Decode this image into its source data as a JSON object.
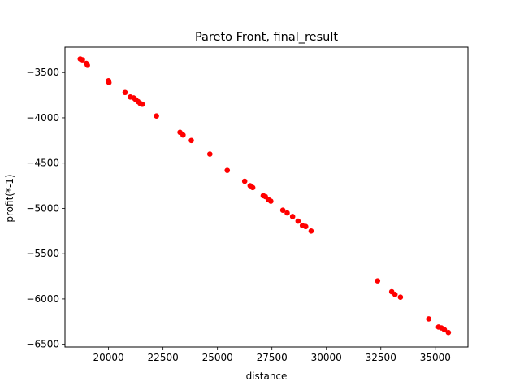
{
  "chart_data": {
    "type": "scatter",
    "title": "Pareto Front, final_result",
    "xlabel": "distance",
    "ylabel": "profit(*-1)",
    "xlim": [
      18000,
      36500
    ],
    "ylim": [
      -6530,
      -3220
    ],
    "x_ticks": [
      20000,
      22500,
      25000,
      27500,
      30000,
      32500,
      35000
    ],
    "y_ticks": [
      -3500,
      -4000,
      -4500,
      -5000,
      -5500,
      -6000,
      -6500
    ],
    "grid": false,
    "legend": "none",
    "marker_color": "#ff0000",
    "points": [
      {
        "x": 18700,
        "y": -3350
      },
      {
        "x": 18800,
        "y": -3360
      },
      {
        "x": 18980,
        "y": -3400
      },
      {
        "x": 19030,
        "y": -3420
      },
      {
        "x": 20000,
        "y": -3590
      },
      {
        "x": 20020,
        "y": -3610
      },
      {
        "x": 20760,
        "y": -3720
      },
      {
        "x": 21000,
        "y": -3770
      },
      {
        "x": 21150,
        "y": -3780
      },
      {
        "x": 21250,
        "y": -3800
      },
      {
        "x": 21350,
        "y": -3820
      },
      {
        "x": 21450,
        "y": -3840
      },
      {
        "x": 21550,
        "y": -3850
      },
      {
        "x": 22200,
        "y": -3980
      },
      {
        "x": 23280,
        "y": -4160
      },
      {
        "x": 23420,
        "y": -4190
      },
      {
        "x": 23800,
        "y": -4250
      },
      {
        "x": 24650,
        "y": -4400
      },
      {
        "x": 25450,
        "y": -4580
      },
      {
        "x": 26250,
        "y": -4700
      },
      {
        "x": 26500,
        "y": -4750
      },
      {
        "x": 26620,
        "y": -4770
      },
      {
        "x": 27100,
        "y": -4860
      },
      {
        "x": 27200,
        "y": -4870
      },
      {
        "x": 27330,
        "y": -4900
      },
      {
        "x": 27450,
        "y": -4920
      },
      {
        "x": 28000,
        "y": -5020
      },
      {
        "x": 28200,
        "y": -5050
      },
      {
        "x": 28450,
        "y": -5090
      },
      {
        "x": 28700,
        "y": -5140
      },
      {
        "x": 28900,
        "y": -5190
      },
      {
        "x": 29050,
        "y": -5200
      },
      {
        "x": 29300,
        "y": -5250
      },
      {
        "x": 32350,
        "y": -5800
      },
      {
        "x": 33000,
        "y": -5920
      },
      {
        "x": 33150,
        "y": -5950
      },
      {
        "x": 33400,
        "y": -5980
      },
      {
        "x": 34700,
        "y": -6220
      },
      {
        "x": 35150,
        "y": -6310
      },
      {
        "x": 35280,
        "y": -6320
      },
      {
        "x": 35420,
        "y": -6340
      },
      {
        "x": 35600,
        "y": -6370
      }
    ]
  }
}
